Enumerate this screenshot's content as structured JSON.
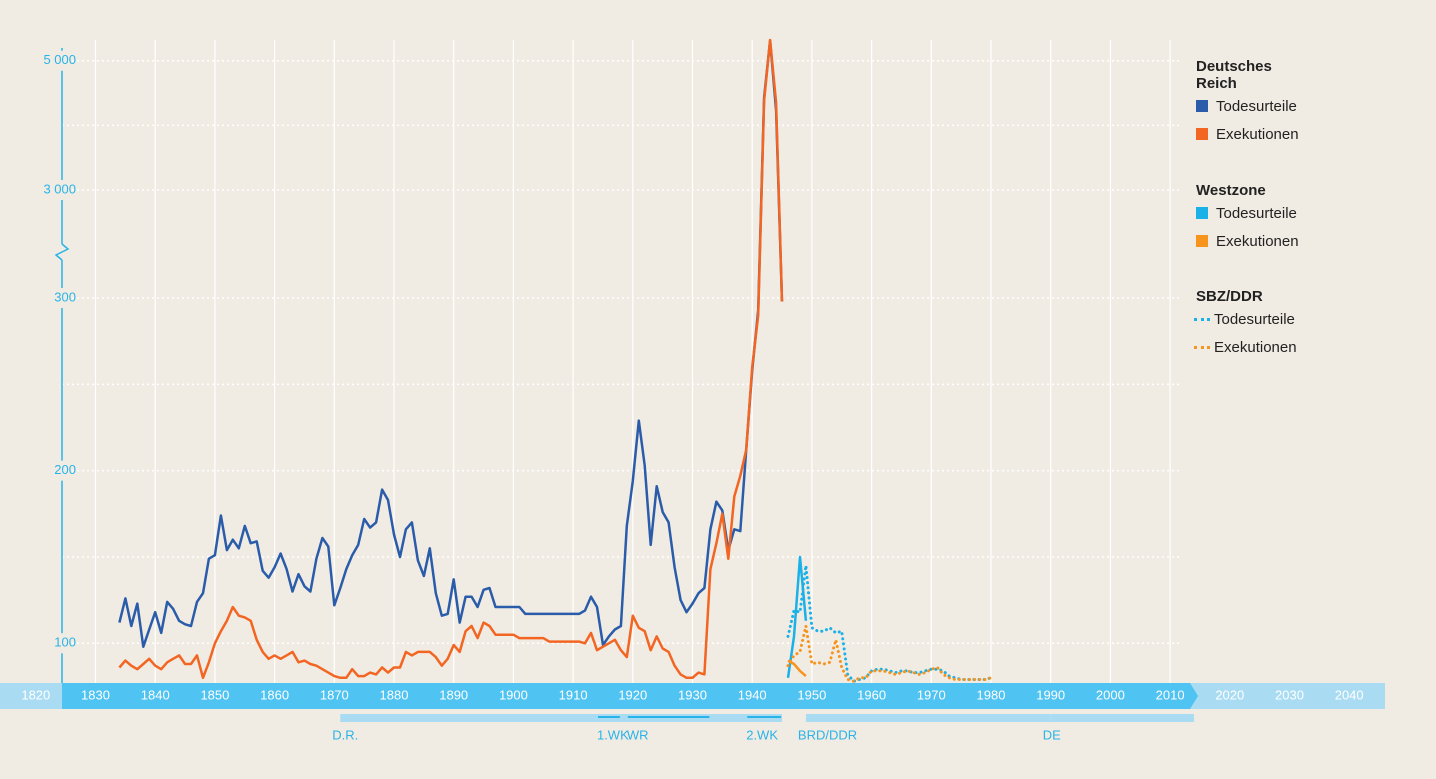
{
  "chart_data": {
    "type": "line",
    "ylim": [
      77,
      5320
    ],
    "y_break": [
      300,
      3000
    ],
    "yticks": [
      100,
      200,
      300,
      {
        "value": 3000,
        "label": "3 000"
      },
      {
        "value": 5000,
        "label": "5 000"
      }
    ],
    "minor_gridlines": [
      150,
      250,
      4000
    ],
    "xlim": [
      1814,
      2046
    ],
    "xticks": [
      1820,
      1830,
      1840,
      1850,
      1860,
      1870,
      1880,
      1890,
      1900,
      1910,
      1920,
      1930,
      1940,
      1950,
      1960,
      1970,
      1980,
      1990,
      2000,
      2010,
      2020,
      2030,
      2040
    ],
    "grid": true,
    "groups": [
      {
        "title": "Deutsches Reich",
        "x": [
          1834,
          1835,
          1836,
          1837,
          1838,
          1839,
          1840,
          1841,
          1842,
          1843,
          1844,
          1845,
          1846,
          1847,
          1848,
          1849,
          1850,
          1851,
          1852,
          1853,
          1854,
          1855,
          1856,
          1857,
          1858,
          1859,
          1860,
          1861,
          1862,
          1863,
          1864,
          1865,
          1866,
          1867,
          1868,
          1869,
          1870,
          1871,
          1872,
          1873,
          1874,
          1875,
          1876,
          1877,
          1878,
          1879,
          1880,
          1881,
          1882,
          1883,
          1884,
          1885,
          1886,
          1887,
          1888,
          1889,
          1890,
          1891,
          1892,
          1893,
          1894,
          1895,
          1896,
          1897,
          1898,
          1899,
          1900,
          1901,
          1902,
          1903,
          1904,
          1905,
          1906,
          1907,
          1908,
          1909,
          1910,
          1911,
          1912,
          1913,
          1914,
          1915,
          1916,
          1917,
          1918,
          1919,
          1920,
          1921,
          1922,
          1923,
          1924,
          1925,
          1926,
          1927,
          1928,
          1929,
          1930,
          1931,
          1932,
          1933,
          1934,
          1935,
          1936,
          1937,
          1938,
          1939,
          1940,
          1941,
          1942,
          1943,
          1944,
          1945
        ],
        "series": [
          {
            "name": "Todesurteile",
            "color": "#2a5caa",
            "dotted": false,
            "values": [
              112,
              126,
              110,
              123,
              98,
              108,
              118,
              106,
              124,
              120,
              113,
              111,
              110,
              124,
              129,
              149,
              151,
              174,
              154,
              160,
              155,
              168,
              158,
              159,
              142,
              138,
              144,
              152,
              143,
              130,
              140,
              133,
              130,
              149,
              161,
              156,
              122,
              132,
              143,
              151,
              157,
              172,
              167,
              170,
              189,
              183,
              163,
              150,
              166,
              170,
              148,
              139,
              155,
              129,
              116,
              117,
              137,
              112,
              127,
              127,
              121,
              131,
              132,
              121,
              121,
              121,
              121,
              121,
              117,
              117,
              117,
              117,
              117,
              117,
              117,
              117,
              117,
              117,
              119,
              127,
              121,
              99,
              104,
              108,
              110,
              168,
              194,
              229,
              203,
              157,
              191,
              176,
              170,
              144,
              125,
              118,
              123,
              129,
              132,
              166,
              182,
              177,
              154,
              166,
              165,
              212,
              258,
              293,
              4430,
              5310,
              4230,
              298
            ]
          },
          {
            "name": "Exekutionen",
            "color": "#f26522",
            "dotted": false,
            "values": [
              86,
              90,
              87,
              85,
              88,
              91,
              87,
              85,
              89,
              91,
              93,
              88,
              88,
              93,
              80,
              89,
              100,
              107,
              113,
              121,
              116,
              115,
              113,
              102,
              95,
              91,
              93,
              91,
              93,
              95,
              89,
              90,
              88,
              87,
              85,
              83,
              81,
              80,
              80,
              85,
              81,
              81,
              83,
              82,
              86,
              83,
              86,
              86,
              95,
              93,
              95,
              95,
              95,
              92,
              87,
              91,
              99,
              95,
              107,
              110,
              103,
              112,
              110,
              105,
              105,
              105,
              105,
              103,
              103,
              103,
              103,
              103,
              101,
              101,
              101,
              101,
              101,
              101,
              100,
              106,
              96,
              98,
              100,
              102,
              96,
              92,
              116,
              109,
              107,
              96,
              104,
              97,
              95,
              87,
              82,
              80,
              80,
              83,
              82,
              143,
              158,
              175,
              149,
              185,
              197,
              212,
              260,
              290,
              4380,
              5320,
              4350,
              298
            ]
          }
        ]
      },
      {
        "title": "Westzone",
        "x": [
          1946,
          1947,
          1948,
          1949
        ],
        "series": [
          {
            "name": "Todesurteile",
            "color": "#1ab0e8",
            "dotted": false,
            "values": [
              80,
              104,
              150,
              113
            ]
          },
          {
            "name": "Exekutionen",
            "color": "#f7941d",
            "dotted": false,
            "values": [
              90,
              88,
              84,
              81
            ]
          }
        ]
      },
      {
        "title": "SBZ/DDR",
        "x": [
          1946,
          1947,
          1948,
          1949,
          1950,
          1951,
          1952,
          1953,
          1954,
          1955,
          1956,
          1957,
          1958,
          1959,
          1960,
          1961,
          1962,
          1963,
          1964,
          1965,
          1966,
          1967,
          1968,
          1969,
          1970,
          1971,
          1972,
          1973,
          1974,
          1975,
          1976,
          1977,
          1978,
          1979,
          1980
        ],
        "series": [
          {
            "name": "Todesurteile",
            "color": "#1ab0e8",
            "dotted": true,
            "values": [
              104,
              119,
              118,
              145,
              109,
              107,
              107,
              109,
              106,
              107,
              82,
              78,
              79,
              80,
              84,
              85,
              85,
              84,
              83,
              84,
              84,
              83,
              83,
              84,
              85,
              85,
              84,
              81,
              80,
              79,
              79,
              79,
              79,
              79,
              80
            ]
          },
          {
            "name": "Exekutionen",
            "color": "#f7941d",
            "dotted": true,
            "values": [
              87,
              93,
              95,
              110,
              88,
              89,
              88,
              89,
              102,
              86,
              79,
              78,
              80,
              80,
              84,
              84,
              84,
              83,
              82,
              83,
              84,
              83,
              82,
              83,
              85,
              86,
              82,
              80,
              79,
              79,
              79,
              79,
              79,
              79,
              80
            ]
          }
        ]
      }
    ],
    "eras": [
      {
        "label": "D.R.",
        "start": 1871,
        "end": 1945,
        "sub": [
          {
            "label": "1.WK",
            "start": 1914,
            "end": 1918
          },
          {
            "label": "WR",
            "start": 1919,
            "end": 1933
          },
          {
            "label": "2.WK",
            "start": 1939,
            "end": 1945
          }
        ]
      },
      {
        "label": "BRD/DDR",
        "start": 1949,
        "end": 1990,
        "sub": []
      },
      {
        "label": "DE",
        "start": 1990,
        "end": 2014,
        "sub": []
      }
    ]
  }
}
